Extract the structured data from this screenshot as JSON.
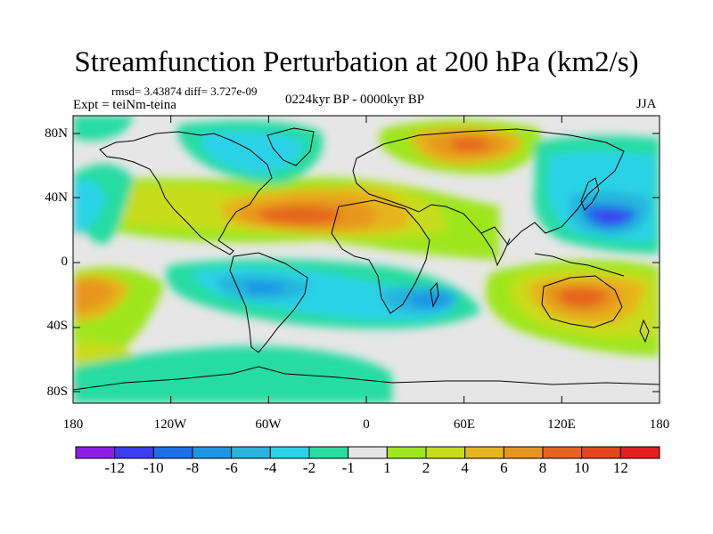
{
  "title": "Streamfunction Perturbation at 200 hPa (km2/s)",
  "stats": "rmsd= 3.43874  diff= 3.727e-09",
  "experiment": "Expt = teiNm-teina",
  "period": "0224kyr BP - 0000kyr BP",
  "season": "JJA",
  "lat_ticks": [
    "80N",
    "40N",
    "0",
    "40S",
    "80S"
  ],
  "lon_ticks": [
    "180",
    "120W",
    "60W",
    "0",
    "60E",
    "120E",
    "180"
  ],
  "colorbar": {
    "labels": [
      "-12",
      "-10",
      "-8",
      "-6",
      "-4",
      "-2",
      "-1",
      "1",
      "2",
      "4",
      "6",
      "8",
      "10",
      "12"
    ],
    "colors": [
      "#8c1ee6",
      "#3c3cf0",
      "#1e6ee6",
      "#1e96e6",
      "#28b4dc",
      "#2ad2e6",
      "#28dca0",
      "#e6e6e6",
      "#9ee61e",
      "#c8dc1e",
      "#e6b41e",
      "#e6961e",
      "#e6641e",
      "#e6461e",
      "#e61e1e"
    ]
  },
  "map_colors": {
    "neutral": "#e6e6e6",
    "pos1": "#9ee61e",
    "pos2": "#c8dc1e",
    "pos3": "#e6b41e",
    "pos4": "#e6961e",
    "pos5": "#e6641e",
    "neg1": "#28dca0",
    "neg2": "#2ad2e6",
    "neg3": "#28b4dc",
    "neg4": "#1e96e6",
    "neg5": "#1e6ee6",
    "neg6": "#3c3cf0"
  }
}
